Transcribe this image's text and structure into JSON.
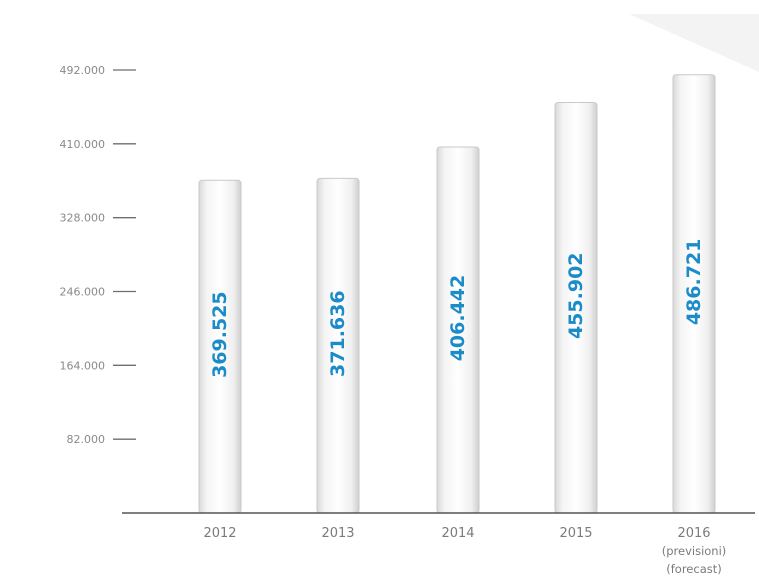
{
  "chart_data": {
    "type": "bar",
    "categories": [
      "2012",
      "2013",
      "2014",
      "2015",
      "2016"
    ],
    "category_sublabels": [
      [],
      [],
      [],
      [],
      [
        "(previsioni)",
        "(forecast)"
      ]
    ],
    "values": [
      369525,
      371636,
      406442,
      455902,
      486721
    ],
    "value_labels": [
      "369.525",
      "371.636",
      "406.442",
      "455.902",
      "486.721"
    ],
    "yticks": [
      82000,
      164000,
      246000,
      328000,
      410000,
      492000
    ],
    "ytick_labels": [
      "82.000",
      "164.000",
      "246.000",
      "328.000",
      "410.000",
      "492.000"
    ],
    "ylim": [
      0,
      492000
    ],
    "title": "",
    "xlabel": "",
    "ylabel": "",
    "grid": false,
    "colors": {
      "label_blue": "#1c8cc8",
      "axis": "#555555",
      "tick_mark": "#6e6e6e",
      "bar_edge": "#c9c9c9"
    }
  }
}
